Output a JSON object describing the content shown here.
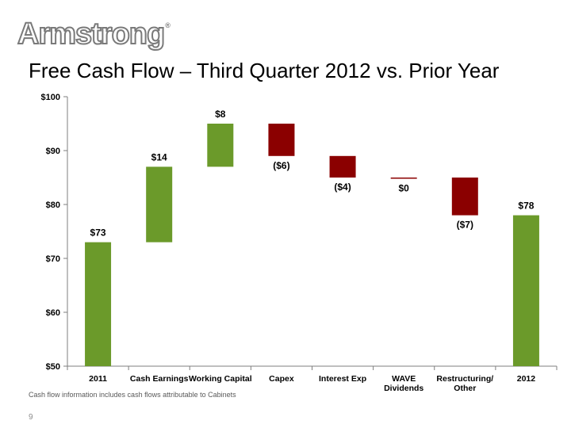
{
  "header": {
    "logo_text": "Armstrong",
    "logo_mark": "®",
    "title": "Free Cash Flow – Third Quarter 2012 vs. Prior Year"
  },
  "colors": {
    "increase": "#6b9a2a",
    "decrease": "#8b0000",
    "axis": "#7f7f7f"
  },
  "chart_data": {
    "type": "bar",
    "subtype": "waterfall",
    "categories": [
      [
        "2011"
      ],
      [
        "Cash Earnings"
      ],
      [
        "Working Capital"
      ],
      [
        "Capex"
      ],
      [
        "Interest Exp"
      ],
      [
        "WAVE",
        "Dividends"
      ],
      [
        "Restructuring/",
        "Other"
      ],
      [
        "2012"
      ]
    ],
    "bars": [
      {
        "base": 50,
        "top": 73,
        "kind": "total",
        "label": "$73"
      },
      {
        "base": 73,
        "top": 87,
        "kind": "increase",
        "label": "$14"
      },
      {
        "base": 87,
        "top": 95,
        "kind": "increase",
        "label": "$8"
      },
      {
        "base": 89,
        "top": 95,
        "kind": "decrease",
        "label": "($6)"
      },
      {
        "base": 85,
        "top": 89,
        "kind": "decrease",
        "label": "($4)"
      },
      {
        "base": 84.8,
        "top": 85,
        "kind": "decrease",
        "label": "$0"
      },
      {
        "base": 78,
        "top": 85,
        "kind": "decrease",
        "label": "($7)"
      },
      {
        "base": 50,
        "top": 78,
        "kind": "total",
        "label": "$78"
      }
    ],
    "ylim": [
      50,
      100
    ],
    "yticks": [
      50,
      60,
      70,
      80,
      90,
      100
    ],
    "ytick_labels": [
      "$50",
      "$60",
      "$70",
      "$80",
      "$90",
      "$100"
    ],
    "grid": false
  },
  "footer": {
    "note": "Cash flow information includes cash flows attributable to Cabinets",
    "page": "9"
  }
}
